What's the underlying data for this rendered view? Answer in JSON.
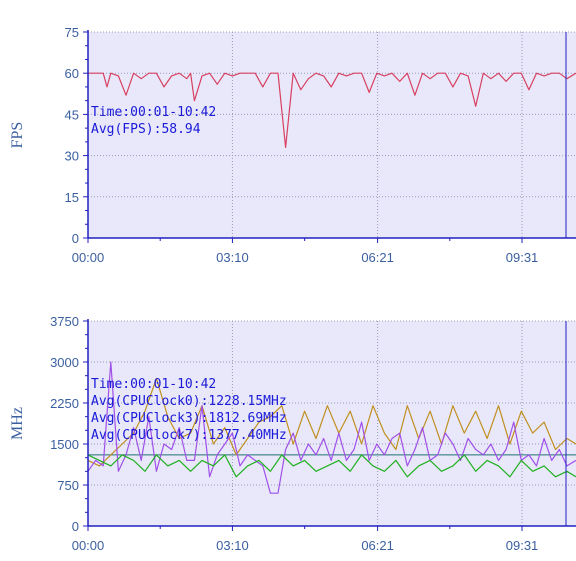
{
  "chart_data": [
    {
      "type": "line",
      "ylabel": "FPS",
      "ylim": [
        0,
        75
      ],
      "yticks": [
        "0",
        "15",
        "30",
        "45",
        "60",
        "75"
      ],
      "xlim": [
        "00:00",
        "10:42"
      ],
      "xticks": [
        "00:00",
        "03:10",
        "06:21",
        "09:31"
      ],
      "grid": true,
      "annotations": [
        "Time:00:01-10:42",
        "Avg(FPS):58.94"
      ],
      "colors": {
        "plot_bg": "#e8e8fa",
        "grid": "#9a9ab8",
        "axis": "#2020c0"
      },
      "series": [
        {
          "color": "#d84060",
          "x": [
            0,
            10,
            20,
            25,
            30,
            40,
            50,
            60,
            70,
            80,
            90,
            100,
            110,
            120,
            130,
            135,
            140,
            150,
            160,
            170,
            180,
            190,
            200,
            210,
            220,
            230,
            240,
            250,
            260,
            270,
            280,
            290,
            300,
            310,
            320,
            330,
            340,
            350,
            360,
            370,
            380,
            390,
            400,
            410,
            420,
            430,
            440,
            450,
            460,
            470,
            480,
            490,
            500,
            510,
            520,
            530,
            540,
            550,
            560,
            570,
            580,
            590,
            600,
            610,
            620,
            630,
            642
          ],
          "y": [
            60,
            60,
            60,
            55,
            60,
            59,
            52,
            60,
            58,
            60,
            60,
            55,
            59,
            60,
            58,
            60,
            50,
            59,
            60,
            56,
            60,
            59,
            60,
            60,
            60,
            55,
            60,
            60,
            33,
            60,
            54,
            58,
            60,
            59,
            55,
            60,
            59,
            60,
            60,
            53,
            60,
            59,
            60,
            57,
            60,
            52,
            60,
            58,
            60,
            60,
            55,
            60,
            59,
            48,
            60,
            58,
            60,
            57,
            60,
            60,
            54,
            60,
            59,
            60,
            60,
            58,
            60
          ]
        }
      ]
    },
    {
      "type": "line",
      "ylabel": "MHz",
      "ylim": [
        0,
        3750
      ],
      "yticks": [
        "0",
        "750",
        "1500",
        "2250",
        "3000",
        "3750"
      ],
      "xlim": [
        "00:00",
        "10:42"
      ],
      "xticks": [
        "00:00",
        "03:10",
        "06:21",
        "09:31"
      ],
      "grid": true,
      "annotations": [
        "Time:00:01-10:42",
        "Avg(CPUClock0):1228.15MHz",
        "Avg(CPUClock3):1812.69MHz",
        "Avg(CPUClock7):1377.40MHz"
      ],
      "colors": {
        "plot_bg": "#e8e8fa",
        "grid": "#9a9ab8",
        "axis": "#2020c0",
        "ref_line": "#207070"
      },
      "reference_line": 1300,
      "series": [
        {
          "color": "#c09020",
          "x": [
            0,
            15,
            30,
            45,
            60,
            75,
            90,
            105,
            120,
            135,
            150,
            165,
            180,
            195,
            210,
            225,
            240,
            255,
            270,
            285,
            300,
            315,
            330,
            345,
            360,
            375,
            390,
            405,
            420,
            435,
            450,
            465,
            480,
            495,
            510,
            525,
            540,
            555,
            570,
            585,
            600,
            615,
            630,
            642
          ],
          "y": [
            1200,
            1100,
            1300,
            1500,
            1700,
            2100,
            2700,
            2000,
            1600,
            1700,
            2200,
            1500,
            1800,
            1300,
            1600,
            1900,
            2000,
            2200,
            1500,
            2100,
            1600,
            2200,
            1700,
            2100,
            1500,
            2200,
            1700,
            1400,
            2200,
            1600,
            2100,
            1500,
            2200,
            1700,
            2100,
            1600,
            2200,
            1500,
            2100,
            1700,
            1900,
            1400,
            1600,
            1500
          ]
        },
        {
          "color": "#a050e8",
          "x": [
            0,
            10,
            20,
            30,
            40,
            50,
            60,
            70,
            80,
            90,
            100,
            110,
            120,
            130,
            140,
            150,
            160,
            170,
            180,
            190,
            200,
            210,
            220,
            230,
            240,
            250,
            260,
            270,
            280,
            290,
            300,
            310,
            320,
            330,
            340,
            350,
            360,
            370,
            380,
            390,
            400,
            410,
            420,
            430,
            440,
            450,
            460,
            470,
            480,
            490,
            500,
            510,
            520,
            530,
            540,
            550,
            560,
            570,
            580,
            590,
            600,
            610,
            620,
            630,
            642
          ],
          "y": [
            1000,
            1200,
            1100,
            3000,
            1000,
            1300,
            1800,
            1200,
            2000,
            1000,
            1500,
            1400,
            1800,
            1200,
            1200,
            2200,
            900,
            1300,
            1500,
            1700,
            1100,
            1300,
            1200,
            1100,
            600,
            600,
            1400,
            1700,
            1200,
            1500,
            1300,
            1600,
            1200,
            1700,
            1200,
            1400,
            1900,
            1200,
            1500,
            1300,
            1600,
            1700,
            1100,
            1400,
            1800,
            1200,
            1300,
            1700,
            1500,
            1200,
            1600,
            1400,
            1300,
            1500,
            1200,
            1400,
            1900,
            1200,
            1300,
            1100,
            1600,
            1200,
            1400,
            1100,
            1200
          ]
        },
        {
          "color": "#20b020",
          "x": [
            0,
            15,
            30,
            45,
            60,
            75,
            90,
            105,
            120,
            135,
            150,
            165,
            180,
            195,
            210,
            225,
            240,
            255,
            270,
            285,
            300,
            315,
            330,
            345,
            360,
            375,
            390,
            405,
            420,
            435,
            450,
            465,
            480,
            495,
            510,
            525,
            540,
            555,
            570,
            585,
            600,
            615,
            630,
            642
          ],
          "y": [
            1300,
            1200,
            1100,
            1300,
            1200,
            1000,
            1300,
            1100,
            1200,
            1000,
            1200,
            1100,
            1300,
            900,
            1100,
            1200,
            1000,
            1300,
            1100,
            1200,
            1000,
            1100,
            1200,
            1000,
            1300,
            1100,
            1000,
            1200,
            900,
            1100,
            1200,
            1000,
            1100,
            1300,
            1000,
            1200,
            1100,
            900,
            1200,
            1000,
            1100,
            900,
            1000,
            900
          ]
        }
      ]
    }
  ]
}
